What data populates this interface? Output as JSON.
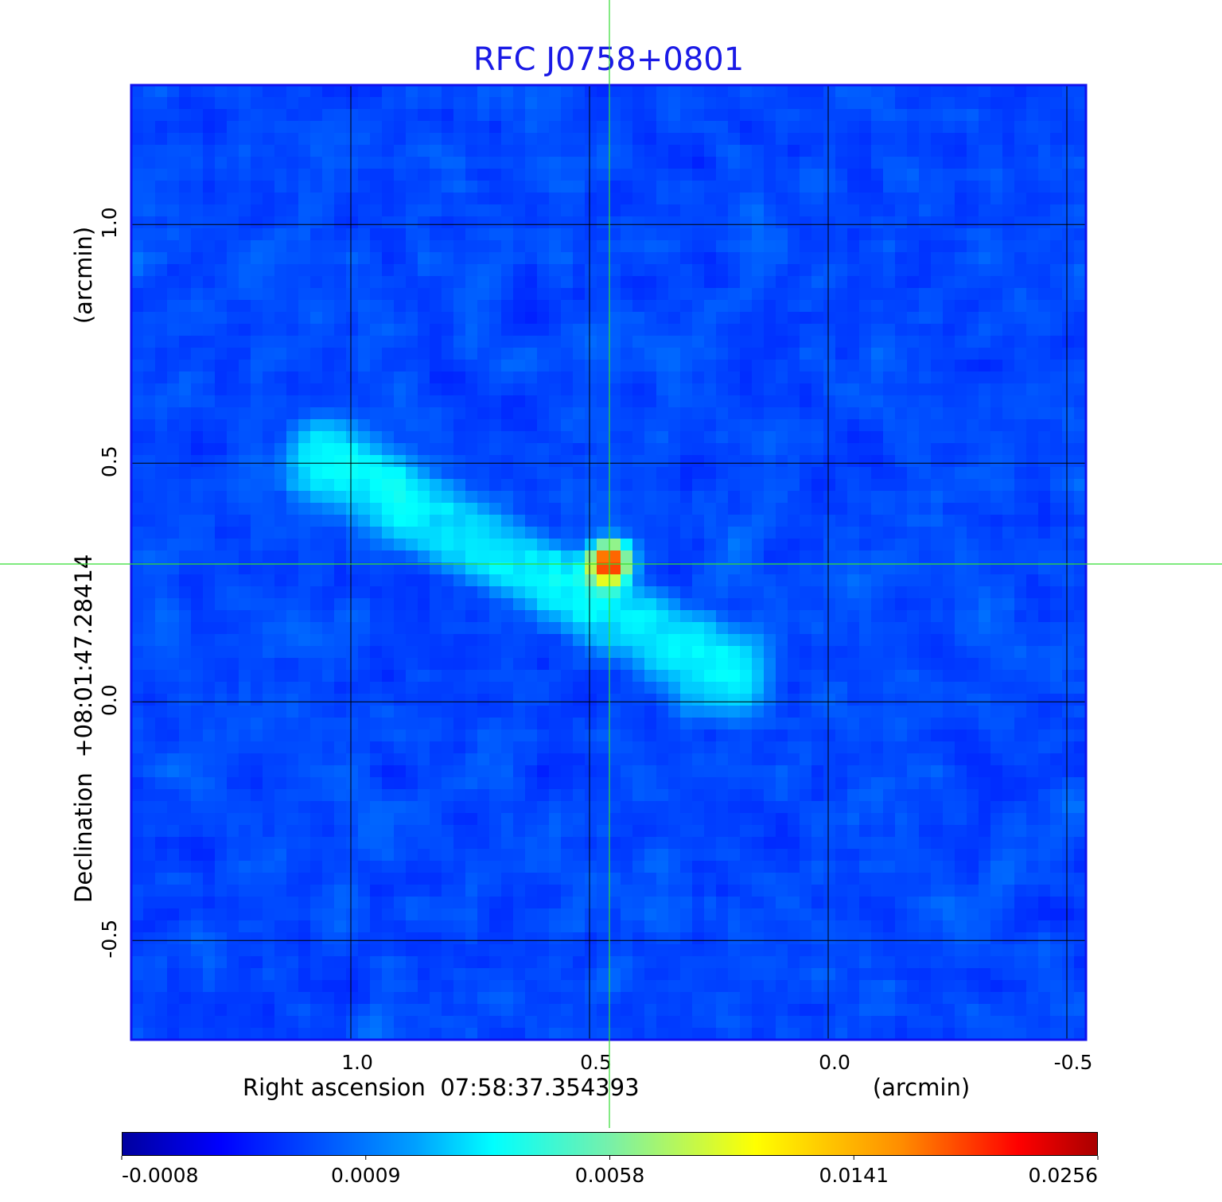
{
  "chart_data": {
    "type": "heatmap",
    "title": "RFC J0758+0801",
    "xlabel": "Right ascension  07:58:37.354393",
    "xunit": "(arcmin)",
    "ylabel": "Declination  +08:01:47.28414",
    "yunit": "(arcmin)",
    "xlim": [
      1.46,
      -0.54
    ],
    "ylim": [
      -0.708,
      1.292
    ],
    "xticks": [
      1.0,
      0.5,
      0.0,
      -0.5
    ],
    "xtick_labels": [
      "1.0",
      "0.5",
      "0.0",
      "-0.5"
    ],
    "yticks": [
      1.0,
      0.5,
      0.0,
      -0.5
    ],
    "ytick_labels": [
      "1.0",
      "0.5",
      "0.0",
      "-0.5"
    ],
    "grid": true,
    "crosshair": {
      "x": 0.458,
      "y": 0.288
    },
    "colormap": "jet",
    "colorbar": {
      "position": "bottom",
      "ticks": [
        -0.0008,
        0.0009,
        0.0058,
        0.0141,
        0.0256
      ],
      "tick_labels": [
        "-0.0008",
        "0.0009",
        "0.0058",
        "0.0141",
        "0.0256"
      ],
      "range": [
        -0.0008,
        0.0256
      ]
    },
    "features": {
      "background_level": 0.0005,
      "peak": {
        "x": 0.458,
        "y": 0.293,
        "value": 0.0256
      },
      "jet_axis_endpoints": [
        {
          "x": 1.04,
          "y": 0.5
        },
        {
          "x": 0.22,
          "y": 0.06
        }
      ],
      "lobe_level": 0.0035
    },
    "colors": {
      "title": "#1a1ae6",
      "crosshair": "#33dd33",
      "frame": "#1010ee"
    }
  }
}
